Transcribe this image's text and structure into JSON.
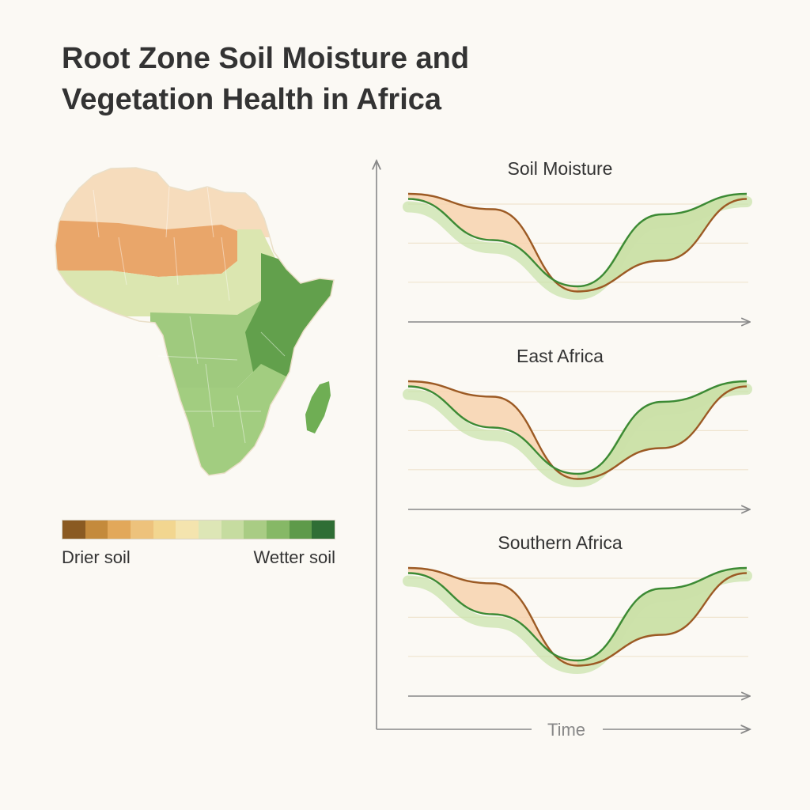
{
  "title": {
    "line1": "Root Zone Soil Moisture and",
    "line2": "Vegetation Health in Africa"
  },
  "map": {
    "region": "Africa",
    "legend": {
      "low_label": "Drier soil",
      "high_label": "Wetter soil",
      "colors": [
        "#8a5a22",
        "#c48a3c",
        "#e2a85a",
        "#edc27c",
        "#f2d690",
        "#f4e4ae",
        "#dde6b6",
        "#c6dca0",
        "#a9cc84",
        "#86b866",
        "#5e9a4a",
        "#2f6e35"
      ]
    },
    "zone_colors": {
      "north": "#f6dcbc",
      "sahel": "#e9a66a",
      "transition": "#dbe6b0",
      "central": "#9fca7e",
      "east": "#62a04c",
      "south": "#a2cd80",
      "madagascar": "#6fae54"
    }
  },
  "chart_data": {
    "type": "area",
    "x_axis_label": "Time",
    "colors": {
      "soil": "#9c5a24",
      "soil_fill": "#f7d3ae",
      "vegetation": "#3c8a34",
      "vegetation_fill": "#c8e2a8"
    },
    "panels": [
      {
        "title": "Soil Moisture",
        "series": [
          {
            "x": [
              0,
              0.25,
              0.5,
              0.75,
              1
            ],
            "values": [
              1.0,
              0.85,
              0.05,
              0.35,
              0.95
            ]
          },
          {
            "x": [
              0,
              0.25,
              0.5,
              0.75,
              1
            ],
            "values": [
              0.95,
              0.55,
              0.1,
              0.8,
              1.0
            ]
          }
        ]
      },
      {
        "title": "East Africa",
        "series": [
          {
            "x": [
              0,
              0.25,
              0.5,
              0.75,
              1
            ],
            "values": [
              1.0,
              0.85,
              0.05,
              0.35,
              0.95
            ]
          },
          {
            "x": [
              0,
              0.25,
              0.5,
              0.75,
              1
            ],
            "values": [
              0.95,
              0.55,
              0.1,
              0.8,
              1.0
            ]
          }
        ]
      },
      {
        "title": "Southern Africa",
        "series": [
          {
            "x": [
              0,
              0.25,
              0.5,
              0.75,
              1
            ],
            "values": [
              1.0,
              0.85,
              0.05,
              0.35,
              0.95
            ]
          },
          {
            "x": [
              0,
              0.25,
              0.5,
              0.75,
              1
            ],
            "values": [
              0.95,
              0.55,
              0.1,
              0.8,
              1.0
            ]
          }
        ]
      }
    ]
  }
}
